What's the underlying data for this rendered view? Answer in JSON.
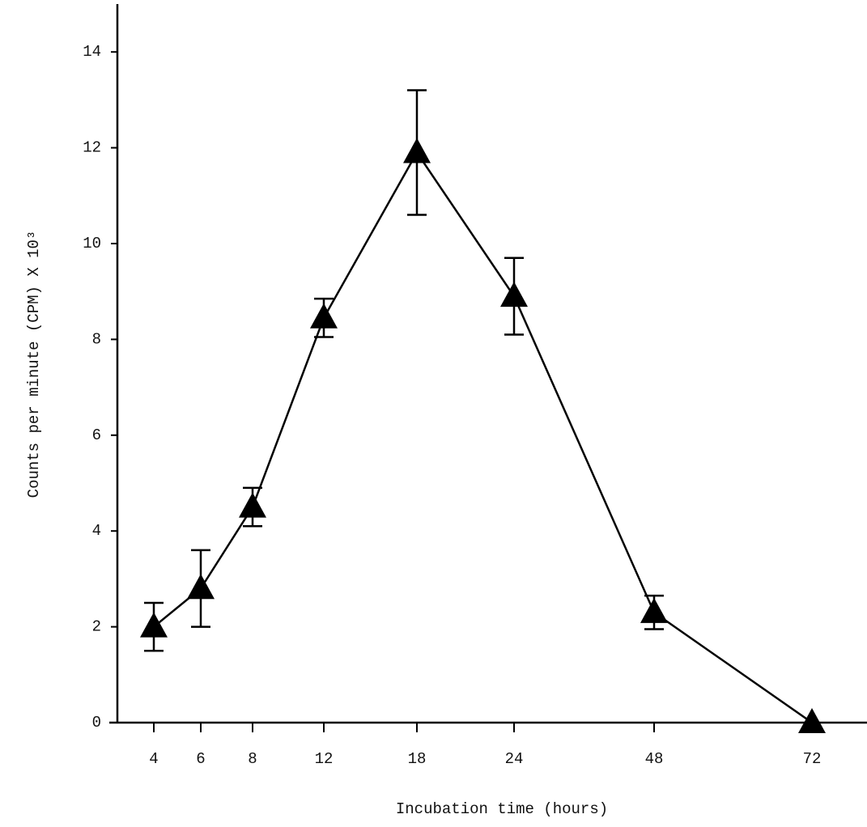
{
  "chart_data": {
    "type": "line",
    "x_label": "Incubation time  (hours)",
    "y_label": "Counts per minute (CPM) X 10³",
    "categories": [
      "4",
      "6",
      "8",
      "12",
      "18",
      "24",
      "48",
      "72"
    ],
    "values": [
      2.0,
      2.8,
      4.5,
      8.45,
      11.9,
      8.9,
      2.3,
      0
    ],
    "errors": [
      0.5,
      0.8,
      0.4,
      0.4,
      1.3,
      0.8,
      0.35,
      null
    ],
    "color": "#000000",
    "marker": "triangle",
    "ylim": [
      0,
      15
    ],
    "yticks": [
      0,
      2,
      4,
      6,
      8,
      10,
      12,
      14
    ]
  }
}
